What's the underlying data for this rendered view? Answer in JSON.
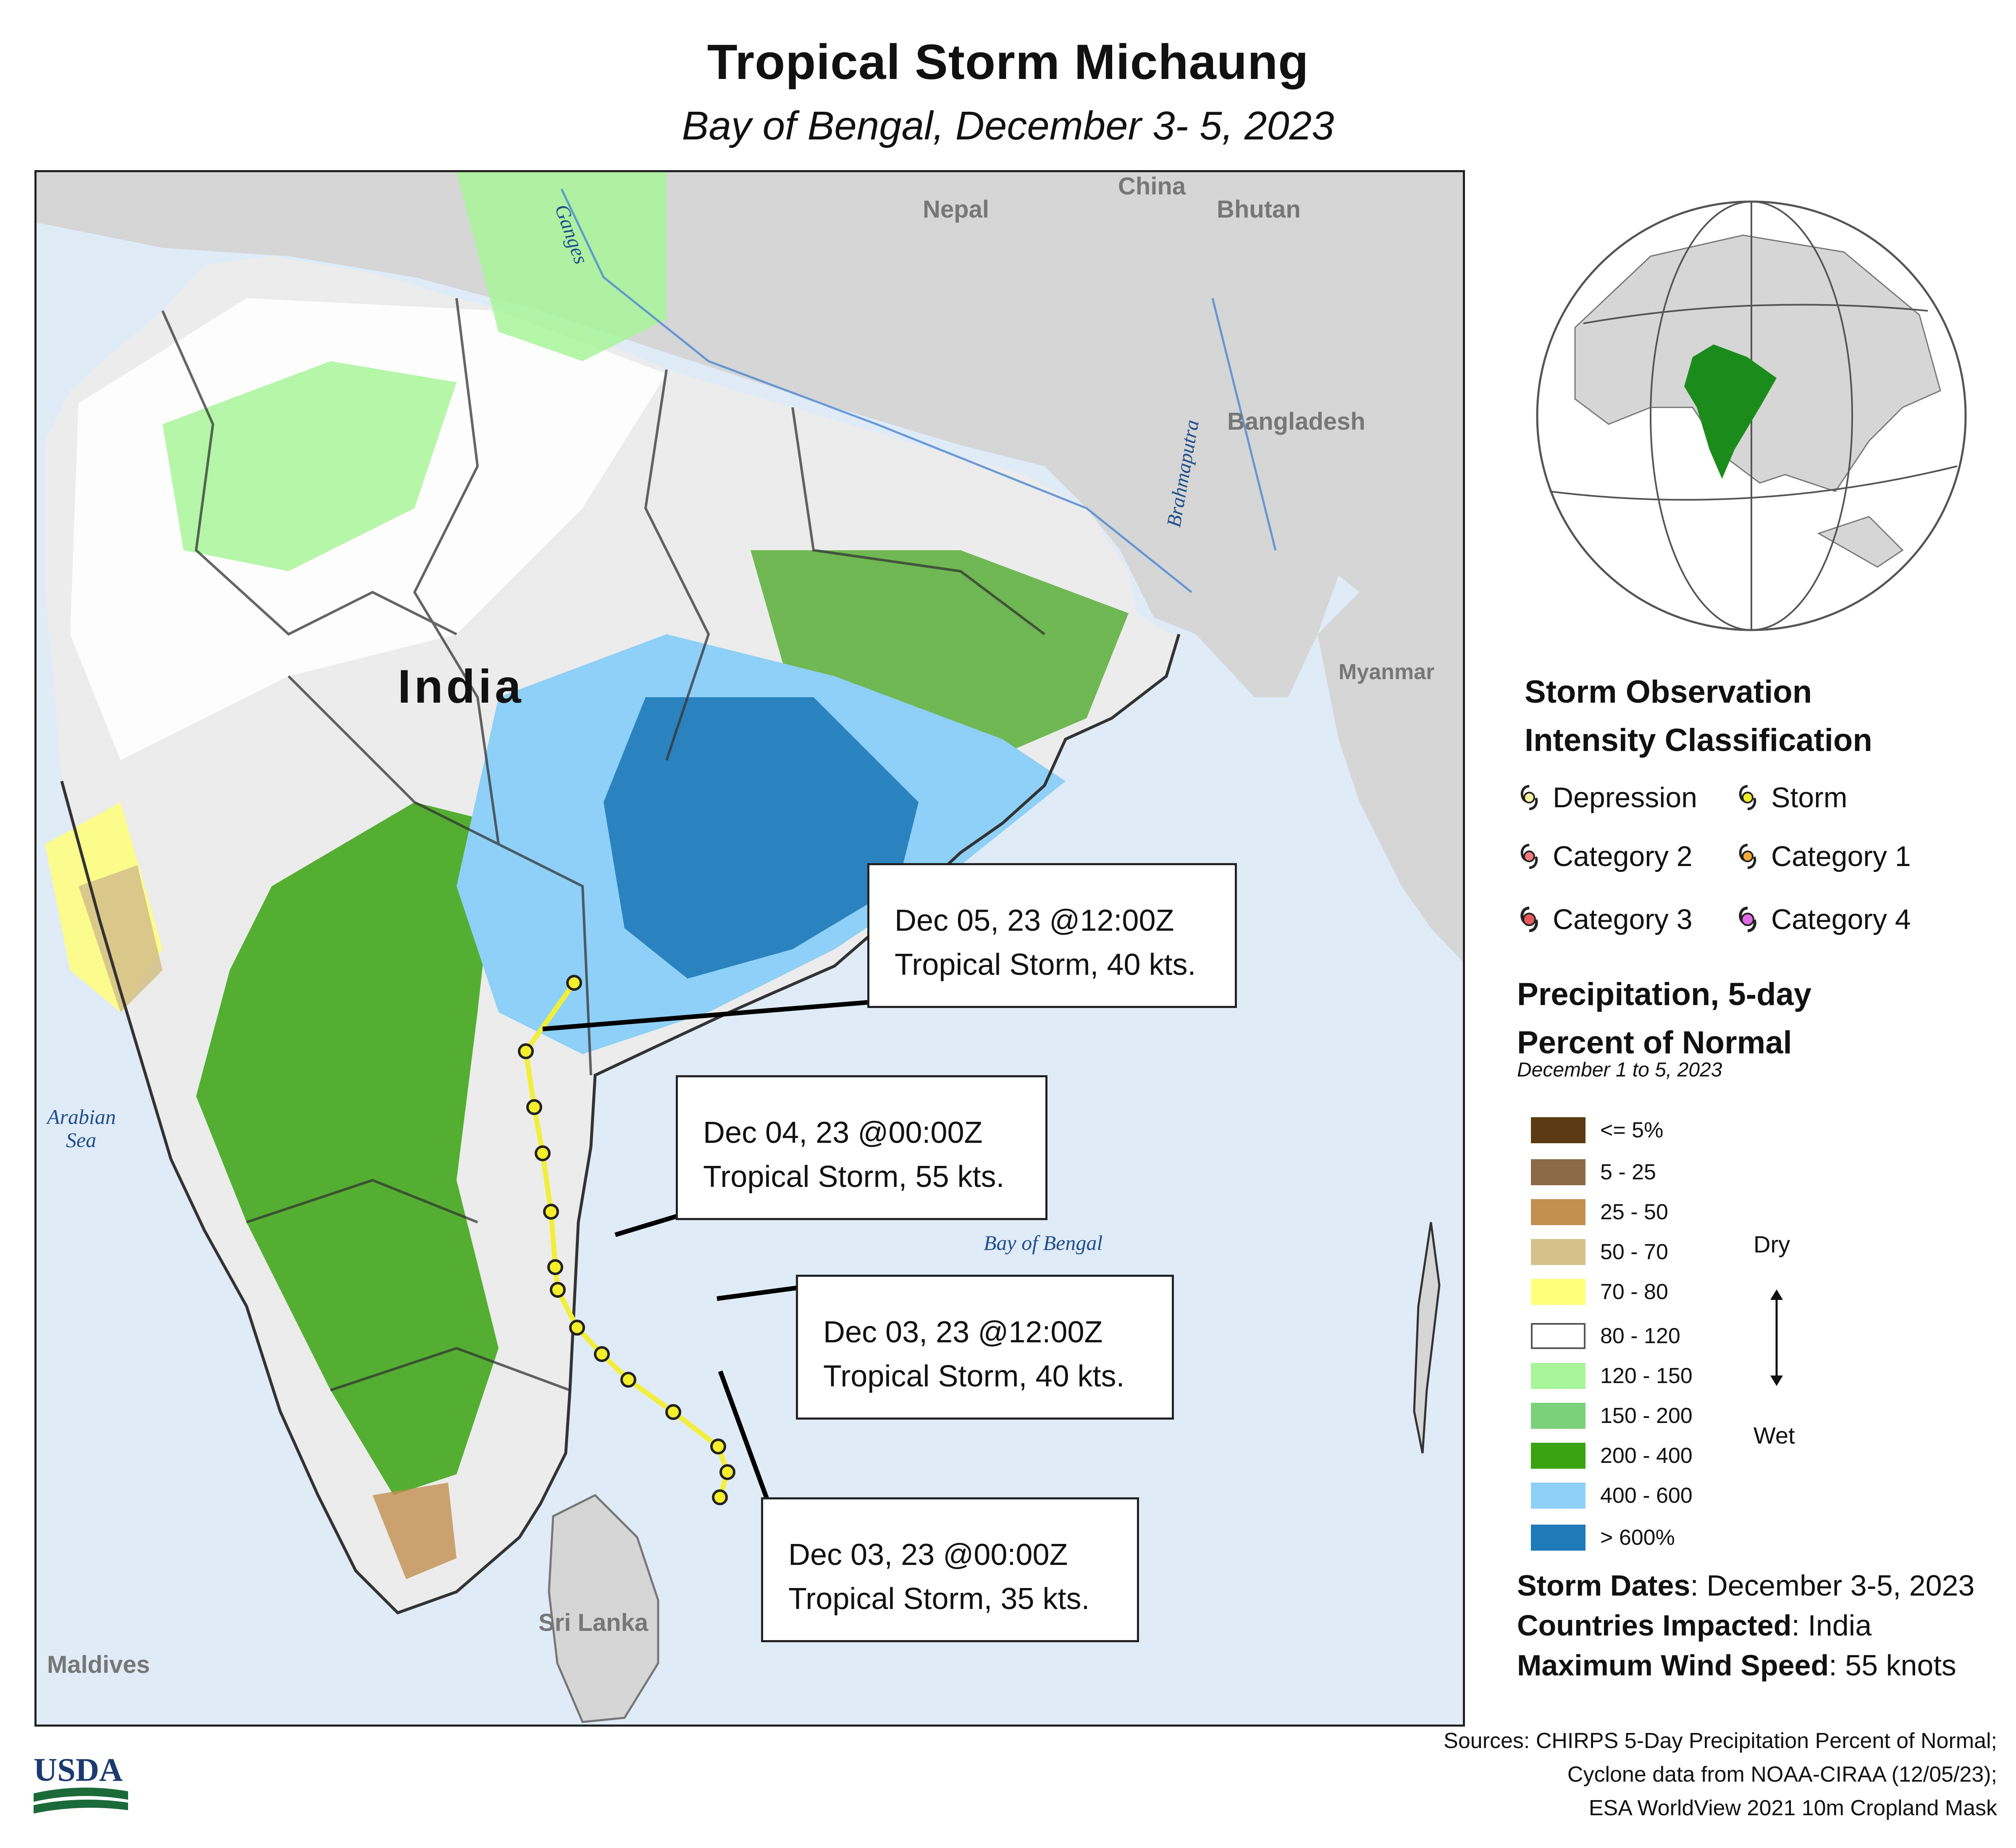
{
  "header": {
    "title": "Tropical Storm Michaung",
    "subtitle": "Bay of Bengal, December 3- 5, 2023"
  },
  "map": {
    "labels": {
      "india": "India",
      "nepal": "Nepal",
      "china": "China",
      "bhutan": "Bhutan",
      "bangladesh": "Bangladesh",
      "myanmar": "Myanmar",
      "sri_lanka": "Sri Lanka",
      "maldives": "Maldives",
      "arabian_sea_1": "Arabian",
      "arabian_sea_2": "Sea",
      "bay_of_bengal": "Bay of Bengal",
      "ganges": "Ganges",
      "brahmaputra": "Brahmaputra"
    },
    "callouts": [
      {
        "line1": "Dec 05, 23 @12:00Z",
        "line2": "Tropical Storm, 40 kts."
      },
      {
        "line1": "Dec 04, 23 @00:00Z",
        "line2": "Tropical Storm, 55 kts."
      },
      {
        "line1": "Dec 03, 23 @12:00Z",
        "line2": "Tropical Storm, 40 kts."
      },
      {
        "line1": "Dec 03, 23 @00:00Z",
        "line2": "Tropical Storm, 35 kts."
      }
    ],
    "colors": {
      "ocean": "#e0ebf8",
      "land": "#d6d6d6",
      "track": "#f2ef3c"
    }
  },
  "legend": {
    "storm_title_1": "Storm Observation",
    "storm_title_2": "Intensity Classification",
    "classes": [
      {
        "label": "Depression",
        "color": "#f6f3a0",
        "icon": "cyclone-icon"
      },
      {
        "label": "Storm",
        "color": "#f5ee2a",
        "icon": "cyclone-icon"
      },
      {
        "label": "Category 2",
        "color": "#f47c7c",
        "icon": "cyclone-icon"
      },
      {
        "label": "Category 1",
        "color": "#f5a940",
        "icon": "cyclone-icon"
      },
      {
        "label": "Category 3",
        "color": "#e85a5a",
        "icon": "cyclone-icon"
      },
      {
        "label": "Category 4",
        "color": "#e06ae8",
        "icon": "cyclone-icon"
      }
    ],
    "precip_title_1": "Precipitation, 5-day",
    "precip_title_2": "Percent of Normal",
    "precip_period": "December 1 to 5, 2023",
    "precip_classes": [
      {
        "label": "<= 5%",
        "color": "#5a3a12"
      },
      {
        "label": "5 - 25",
        "color": "#8c6a48"
      },
      {
        "label": "25 - 50",
        "color": "#c39050"
      },
      {
        "label": "50 - 70",
        "color": "#d5c28a"
      },
      {
        "label": "70 - 80",
        "color": "#ffff7a"
      },
      {
        "label": "80 - 120",
        "color": "#ffffff"
      },
      {
        "label": "120 - 150",
        "color": "#a8f59a"
      },
      {
        "label": "150 - 200",
        "color": "#7bd07a"
      },
      {
        "label": "200 - 400",
        "color": "#3aa312"
      },
      {
        "label": "400 - 600",
        "color": "#8ed0f7"
      },
      {
        "label": "> 600%",
        "color": "#1f7ab8"
      }
    ],
    "dry": "Dry",
    "wet": "Wet"
  },
  "facts": {
    "storm_dates_label": "Storm Dates",
    "storm_dates_value": ": December 3-5, 2023",
    "countries_label": "Countries Impacted",
    "countries_value": ": India",
    "wind_label": "Maximum Wind Speed",
    "wind_value": ": 55 knots"
  },
  "sources": {
    "line1": "Sources: CHIRPS 5-Day Precipitation Percent of Normal;",
    "line2": "Cyclone data from NOAA-CIRAA (12/05/23);",
    "line3": "ESA WorldView 2021 10m Cropland Mask"
  },
  "logo": {
    "text": "USDA"
  }
}
